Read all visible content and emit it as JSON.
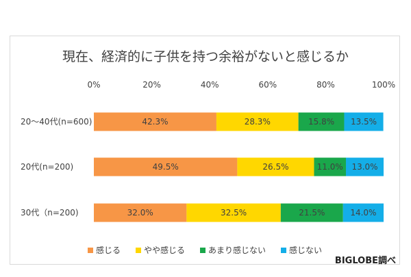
{
  "chart_data": {
    "type": "bar",
    "orientation": "horizontal",
    "stacked": true,
    "title": "現在、経済的に子供を持つ余裕がないと感じるか",
    "categories": [
      "20～40代(n=600)",
      "20代(n=200)",
      "30代（n=200)"
    ],
    "x_ticks": [
      "0%",
      "20%",
      "40%",
      "60%",
      "80%",
      "100%"
    ],
    "xlim": [
      0,
      100
    ],
    "series": [
      {
        "name": "感じる",
        "color": "#f79646",
        "values": [
          42.3,
          49.5,
          32.0
        ],
        "labels": [
          "42.3%",
          "49.5%",
          "32.0%"
        ]
      },
      {
        "name": "やや感じる",
        "color": "#ffd700",
        "values": [
          28.3,
          26.5,
          32.5
        ],
        "labels": [
          "28.3%",
          "26.5%",
          "32.5%"
        ]
      },
      {
        "name": "あまり感じない",
        "color": "#1aa74b",
        "values": [
          15.8,
          11.0,
          21.5
        ],
        "labels": [
          "15.8%",
          "11.0%",
          "21.5%"
        ]
      },
      {
        "name": "感じない",
        "color": "#14aee8",
        "values": [
          13.5,
          13.0,
          14.0
        ],
        "labels": [
          "13.5%",
          "13.0%",
          "14.0%"
        ]
      }
    ],
    "legend_position": "bottom"
  },
  "credit": "BIGLOBE調べ"
}
